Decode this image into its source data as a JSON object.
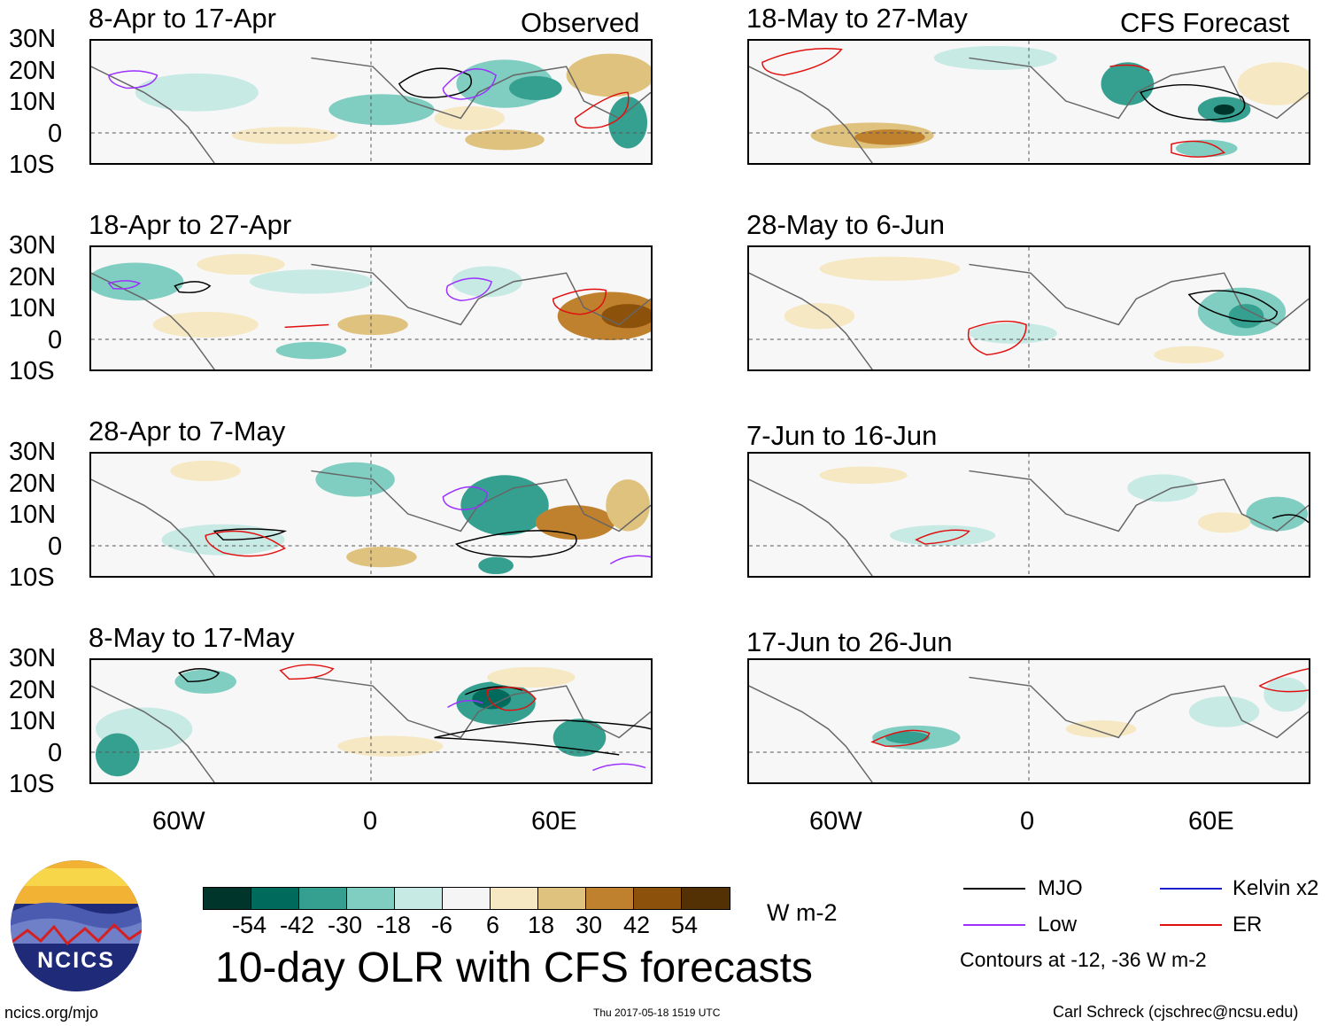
{
  "observed_label": "Observed",
  "forecast_label": "CFS Forecast",
  "left_panels": [
    {
      "title": "8-Apr to 17-Apr"
    },
    {
      "title": "18-Apr to 27-Apr"
    },
    {
      "title": "28-Apr to 7-May"
    },
    {
      "title": "8-May to 17-May"
    }
  ],
  "right_panels": [
    {
      "title": "18-May to 27-May"
    },
    {
      "title": "28-May to 6-Jun"
    },
    {
      "title": "7-Jun to 16-Jun"
    },
    {
      "title": "17-Jun to 26-Jun"
    }
  ],
  "lat_labels": [
    "30N",
    "20N",
    "10N",
    "0",
    "10S"
  ],
  "lon_labels": [
    "60W",
    "0",
    "60E"
  ],
  "colorbar": {
    "colors": [
      "#00352b",
      "#006a5c",
      "#36a090",
      "#80cdc1",
      "#c7eae5",
      "#f5f5f5",
      "#f6e8c3",
      "#dfc27d",
      "#bf812d",
      "#8c510a",
      "#543005"
    ],
    "labels": [
      "-54",
      "-42",
      "-30",
      "-18",
      "-6",
      "6",
      "18",
      "30",
      "42",
      "54"
    ],
    "units": "W m-2"
  },
  "legend": {
    "mjo": "MJO",
    "mjo_color": "#000000",
    "kelvin": "Kelvin x2",
    "kelvin_color": "#1f1fd0",
    "low": "Low",
    "low_color": "#9b30ff",
    "er": "ER",
    "er_color": "#e01010",
    "contours": "Contours at -12, -36 W m-2"
  },
  "main_title": "10-day OLR with CFS forecasts",
  "logo_text": "NCICS",
  "footer": {
    "left": "ncics.org/mjo",
    "center": "Thu 2017-05-18 1519 UTC",
    "right": "Carl Schreck (cjschrec@ncsu.edu)"
  }
}
